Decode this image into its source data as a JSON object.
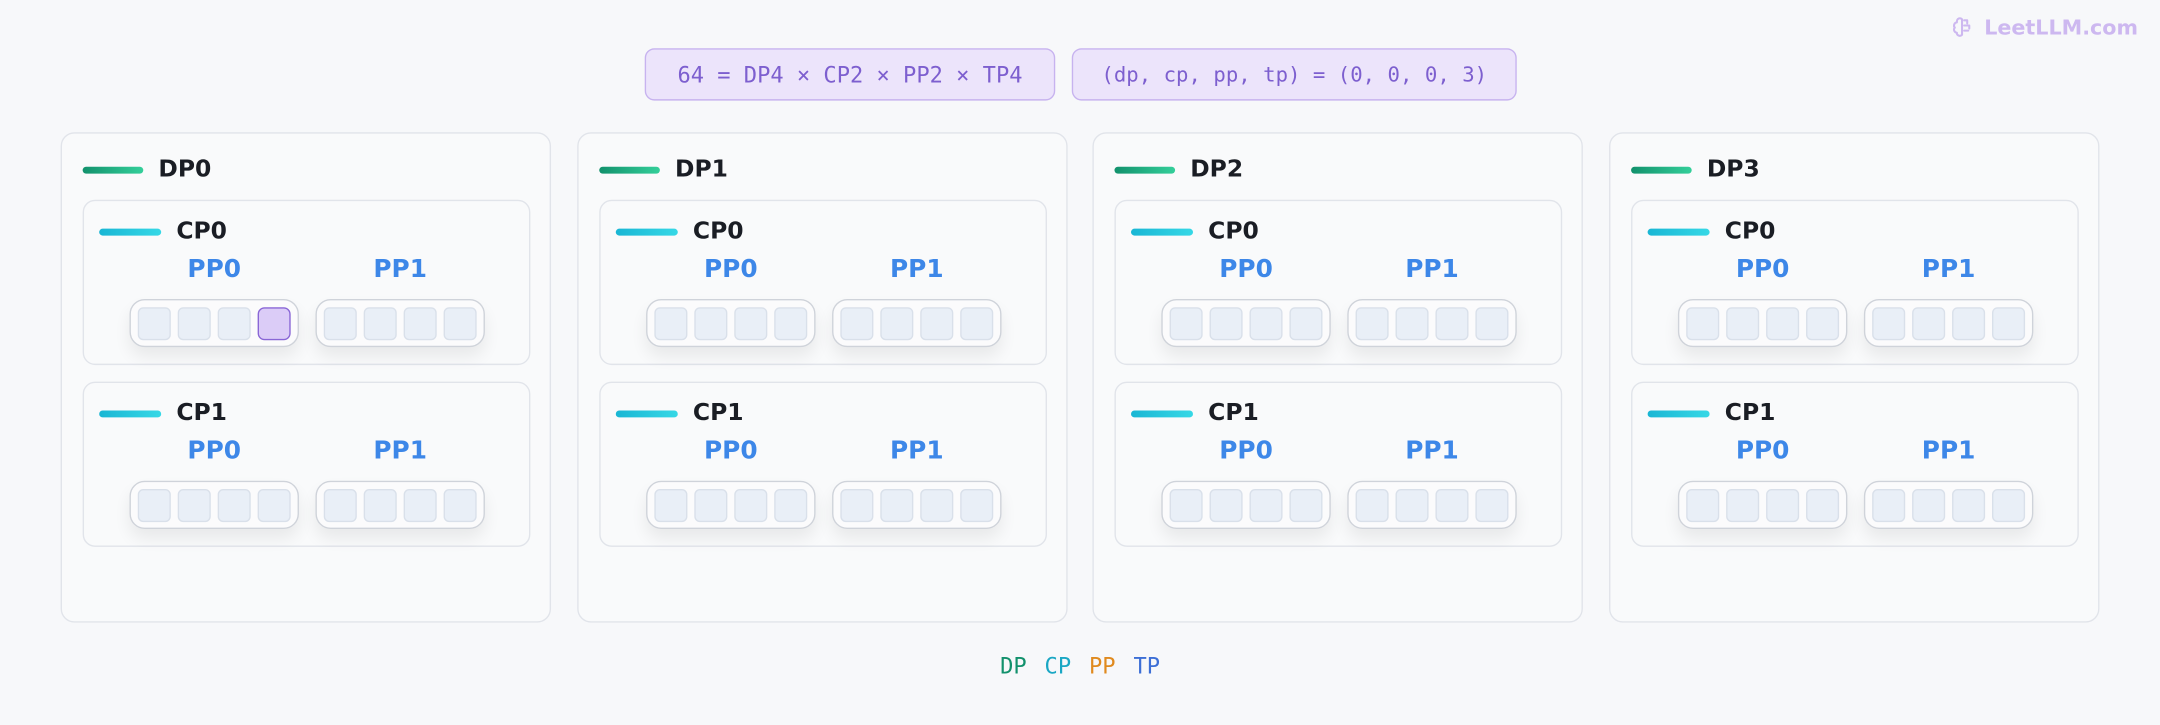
{
  "brand": {
    "name": "LeetLLM.com",
    "icon": "brain-icon",
    "color": "#cdb8f0"
  },
  "formula": {
    "left": "64 = DP4 × CP2 × PP2 × TP4",
    "right": "(dp, cp, pp, tp) = (0, 0, 0, 3)"
  },
  "highlight": {
    "dp": 0,
    "cp": 0,
    "pp": 0,
    "tp": 3
  },
  "dp_groups": [
    {
      "label": "DP0",
      "cp_groups": [
        {
          "label": "CP0",
          "pp_groups": [
            {
              "label": "PP0",
              "tp_count": 4
            },
            {
              "label": "PP1",
              "tp_count": 4
            }
          ]
        },
        {
          "label": "CP1",
          "pp_groups": [
            {
              "label": "PP0",
              "tp_count": 4
            },
            {
              "label": "PP1",
              "tp_count": 4
            }
          ]
        }
      ]
    },
    {
      "label": "DP1",
      "cp_groups": [
        {
          "label": "CP0",
          "pp_groups": [
            {
              "label": "PP0",
              "tp_count": 4
            },
            {
              "label": "PP1",
              "tp_count": 4
            }
          ]
        },
        {
          "label": "CP1",
          "pp_groups": [
            {
              "label": "PP0",
              "tp_count": 4
            },
            {
              "label": "PP1",
              "tp_count": 4
            }
          ]
        }
      ]
    },
    {
      "label": "DP2",
      "cp_groups": [
        {
          "label": "CP0",
          "pp_groups": [
            {
              "label": "PP0",
              "tp_count": 4
            },
            {
              "label": "PP1",
              "tp_count": 4
            }
          ]
        },
        {
          "label": "CP1",
          "pp_groups": [
            {
              "label": "PP0",
              "tp_count": 4
            },
            {
              "label": "PP1",
              "tp_count": 4
            }
          ]
        }
      ]
    },
    {
      "label": "DP3",
      "cp_groups": [
        {
          "label": "CP0",
          "pp_groups": [
            {
              "label": "PP0",
              "tp_count": 4
            },
            {
              "label": "PP1",
              "tp_count": 4
            }
          ]
        },
        {
          "label": "CP1",
          "pp_groups": [
            {
              "label": "PP0",
              "tp_count": 4
            },
            {
              "label": "PP1",
              "tp_count": 4
            }
          ]
        }
      ]
    }
  ],
  "legend": [
    {
      "label": "DP",
      "color": "#12916c"
    },
    {
      "label": "CP",
      "color": "#1aa7c4"
    },
    {
      "label": "PP",
      "color": "#e08a1e"
    },
    {
      "label": "TP",
      "color": "#3d6fd6"
    }
  ],
  "colors": {
    "dp_bar": "#1fb383",
    "cp_bar": "#22c3dc",
    "pp_label": "#3d87e8",
    "active_tp": "#dbccf7",
    "formula_text": "#7d5fcf"
  }
}
